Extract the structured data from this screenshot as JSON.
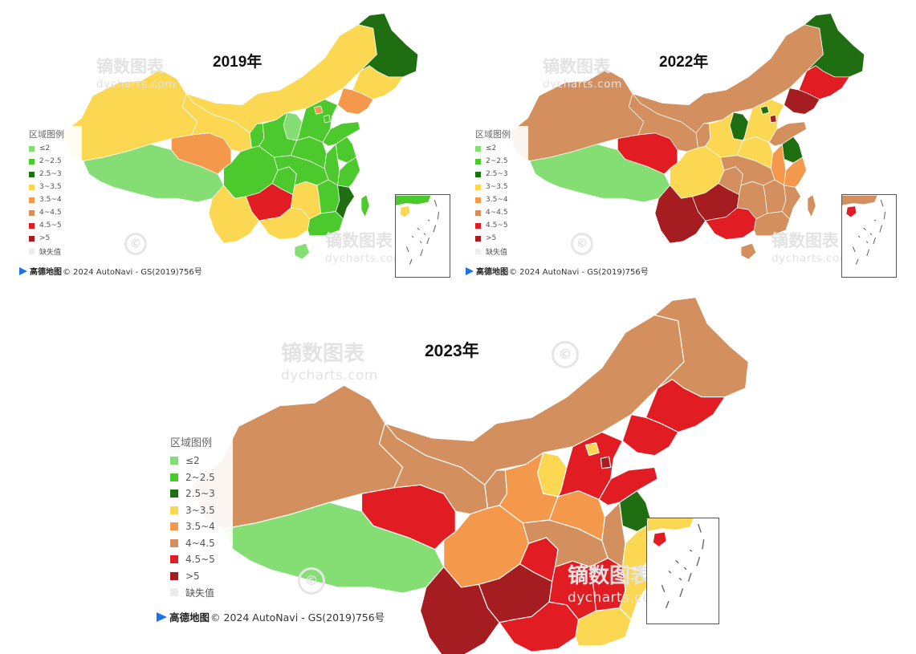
{
  "panels": [
    {
      "year_label": "2019年",
      "regions": {
        "xinjiang": "#fcd752",
        "tibet": "#85de74",
        "qinghai": "#f4984b",
        "gansu": "#fcd752",
        "innermongolia": "#fcd752",
        "heilongjiang": "#1f6f12",
        "jilin": "#fcd752",
        "liaoning": "#f4984b",
        "ningxia": "#4bc92d",
        "sichuan": "#4bc92d",
        "yunnan": "#fcd752",
        "guizhou": "#e11d23",
        "guangxi": "#fcd752",
        "guangdong": "#4bc92d",
        "hainan": "#85de74",
        "chongqing": "#4bc92d",
        "hunan": "#fcd752",
        "jiangxi": "#4bc92d",
        "fujian": "#1f6f12",
        "hubei": "#4bc92d",
        "henan": "#4bc92d",
        "shandong": "#4bc92d",
        "shanxi": "#85de74",
        "shaanxi": "#4bc92d",
        "hebei": "#4bc92d",
        "beijing": "#f4984b",
        "tianjin": "#4bc92d",
        "jiangsu": "#4bc92d",
        "anhui": "#4bc92d",
        "zhejiang": "#4bc92d",
        "taiwan": "#4bc92d",
        "islands": "#fcd752"
      }
    },
    {
      "year_label": "2022年",
      "regions": {
        "xinjiang": "#d48f5e",
        "tibet": "#85de74",
        "qinghai": "#e11d23",
        "gansu": "#d48f5e",
        "innermongolia": "#d48f5e",
        "heilongjiang": "#1f6f12",
        "jilin": "#e11d23",
        "liaoning": "#a51d20",
        "ningxia": "#d48f5e",
        "sichuan": "#fcd752",
        "yunnan": "#a51d20",
        "guizhou": "#a51d20",
        "guangxi": "#e11d23",
        "guangdong": "#d48f5e",
        "hainan": "#d48f5e",
        "chongqing": "#d48f5e",
        "hunan": "#d48f5e",
        "jiangxi": "#d48f5e",
        "fujian": "#d48f5e",
        "hubei": "#d48f5e",
        "henan": "#fcd752",
        "shandong": "#d48f5e",
        "shanxi": "#1f6f12",
        "shaanxi": "#fcd752",
        "hebei": "#fcd752",
        "beijing": "#1f6f12",
        "tianjin": "#a51d20",
        "jiangsu": "#1f6f12",
        "anhui": "#f4984b",
        "zhejiang": "#f4984b",
        "taiwan": "#d48f5e",
        "islands": "#e11d23"
      }
    },
    {
      "year_label": "2023年",
      "regions": {
        "xinjiang": "#d48f5e",
        "tibet": "#85de74",
        "qinghai": "#e11d23",
        "gansu": "#d48f5e",
        "innermongolia": "#d48f5e",
        "heilongjiang": "#d48f5e",
        "jilin": "#e11d23",
        "liaoning": "#e11d23",
        "ningxia": "#d48f5e",
        "sichuan": "#f4984b",
        "yunnan": "#a51d20",
        "guizhou": "#a51d20",
        "guangxi": "#e11d23",
        "guangdong": "#fcd752",
        "hainan": "#e11d23",
        "chongqing": "#e11d23",
        "hunan": "#e11d23",
        "jiangxi": "#e11d23",
        "fujian": "#fcd752",
        "hubei": "#d48f5e",
        "henan": "#f4984b",
        "shandong": "#e11d23",
        "shanxi": "#fcd752",
        "shaanxi": "#f4984b",
        "hebei": "#e11d23",
        "beijing": "#fcd752",
        "tianjin": "#a51d20",
        "jiangsu": "#1f6f12",
        "anhui": "#d48f5e",
        "zhejiang": "#fcd752",
        "taiwan": "#e11d23",
        "islands": "#e11d23"
      }
    }
  ],
  "legend": {
    "title": "区域图例",
    "items": [
      {
        "label": "≤2",
        "color": "#85de74"
      },
      {
        "label": "2~2.5",
        "color": "#4bc92d"
      },
      {
        "label": "2.5~3",
        "color": "#1f6f12"
      },
      {
        "label": "3~3.5",
        "color": "#fcd752"
      },
      {
        "label": "3.5~4",
        "color": "#f4984b"
      },
      {
        "label": "4~4.5",
        "color": "#d48f5e"
      },
      {
        "label": "4.5~5",
        "color": "#e11d23"
      },
      {
        "label": ">5",
        "color": "#a51d20"
      },
      {
        "label": "缺失值",
        "color": "#ececec"
      }
    ]
  },
  "credit": {
    "brand": "高德地图",
    "text": "© 2024 AutoNavi - GS(2019)756号"
  },
  "watermark": {
    "main": "镝数图表",
    "sub": "dycharts.com",
    "circle": "©"
  },
  "colors": {
    "border": "#ffffff",
    "inset_border": "#555555"
  }
}
